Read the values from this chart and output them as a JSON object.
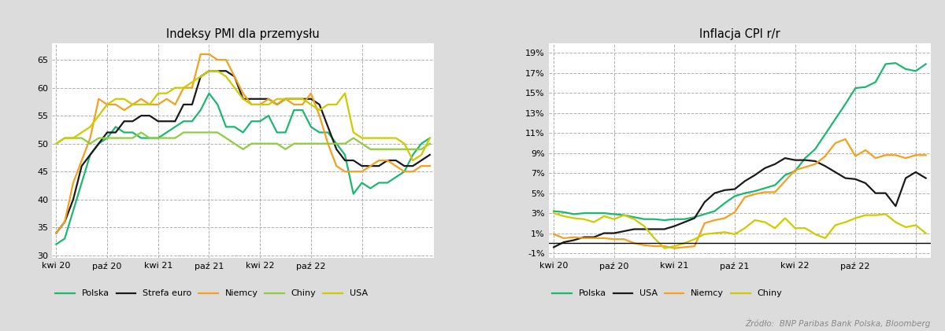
{
  "title1": "Indeksy PMI dla przemysłu",
  "title2": "Inflacja CPI r/r",
  "source": "Żródło:  BNP Paribas Bank Polska, Bloomberg",
  "bg_color": "#dcdcdc",
  "title_bg": "#d0d0d0",
  "plot_bg": "#ffffff",
  "pmi_polska": [
    32,
    33,
    38,
    43,
    48,
    50,
    51,
    53,
    52,
    52,
    51,
    51,
    51,
    52,
    53,
    54,
    54,
    56,
    59,
    57,
    53,
    53,
    52,
    54,
    54,
    55,
    52,
    52,
    56,
    56,
    53,
    52,
    52,
    50,
    48,
    41,
    43,
    42,
    43,
    43,
    44,
    45,
    48,
    50,
    51
  ],
  "pmi_strefa_euro": [
    34,
    36,
    40,
    46,
    48,
    50,
    52,
    52,
    54,
    54,
    55,
    55,
    54,
    54,
    54,
    57,
    57,
    62,
    63,
    63,
    63,
    62,
    58,
    58,
    58,
    58,
    57,
    58,
    58,
    58,
    58,
    57,
    53,
    49,
    47,
    47,
    46,
    46,
    46,
    47,
    47,
    46,
    46,
    47,
    48
  ],
  "pmi_niemcy": [
    34,
    36,
    43,
    47,
    51,
    58,
    57,
    57,
    56,
    57,
    58,
    57,
    57,
    58,
    57,
    60,
    60,
    66,
    66,
    65,
    65,
    62,
    59,
    57,
    57,
    58,
    57,
    58,
    57,
    57,
    59,
    55,
    50,
    46,
    45,
    45,
    45,
    46,
    47,
    47,
    46,
    45,
    45,
    46,
    46
  ],
  "pmi_chiny": [
    50,
    51,
    51,
    51,
    50,
    51,
    51,
    51,
    51,
    51,
    52,
    51,
    51,
    51,
    51,
    52,
    52,
    52,
    52,
    52,
    51,
    50,
    49,
    50,
    50,
    50,
    50,
    49,
    50,
    50,
    50,
    50,
    50,
    50,
    50,
    51,
    50,
    49,
    49,
    49,
    49,
    49,
    49,
    49,
    50
  ],
  "pmi_usa": [
    50,
    51,
    51,
    52,
    53,
    55,
    57,
    58,
    58,
    57,
    57,
    57,
    59,
    59,
    60,
    60,
    61,
    62,
    63,
    63,
    62,
    60,
    58,
    57,
    57,
    57,
    58,
    58,
    58,
    58,
    57,
    56,
    57,
    57,
    59,
    52,
    51,
    51,
    51,
    51,
    51,
    50,
    47,
    48,
    51
  ],
  "cpi_polska": [
    3.2,
    3.1,
    2.9,
    3.0,
    3.0,
    3.0,
    2.9,
    2.8,
    2.6,
    2.4,
    2.4,
    2.3,
    2.4,
    2.4,
    2.6,
    2.9,
    3.2,
    4.0,
    4.7,
    5.0,
    5.2,
    5.5,
    5.8,
    6.8,
    7.2,
    8.5,
    9.4,
    10.9,
    12.4,
    13.9,
    15.5,
    15.6,
    16.1,
    17.9,
    18.0,
    17.4,
    17.2,
    17.9
  ],
  "cpi_usa": [
    -0.4,
    0.1,
    0.3,
    0.6,
    0.6,
    1.0,
    1.0,
    1.2,
    1.4,
    1.4,
    1.4,
    1.4,
    1.7,
    2.1,
    2.5,
    4.1,
    5.0,
    5.3,
    5.4,
    6.2,
    6.8,
    7.5,
    7.9,
    8.5,
    8.3,
    8.3,
    8.2,
    7.7,
    7.1,
    6.5,
    6.4,
    6.0,
    5.0,
    5.0,
    3.7,
    6.5,
    7.1,
    6.5
  ],
  "cpi_niemcy": [
    0.9,
    0.5,
    0.6,
    0.5,
    0.5,
    0.5,
    0.4,
    0.4,
    0.0,
    -0.2,
    -0.3,
    -0.3,
    -0.5,
    -0.4,
    -0.3,
    2.0,
    2.3,
    2.5,
    3.1,
    4.6,
    4.9,
    5.1,
    5.1,
    6.2,
    7.3,
    7.6,
    7.9,
    8.7,
    10.0,
    10.4,
    8.7,
    9.3,
    8.5,
    8.8,
    8.8,
    8.5,
    8.8,
    8.8
  ],
  "cpi_chiny": [
    3.0,
    2.7,
    2.5,
    2.4,
    2.1,
    2.7,
    2.4,
    2.8,
    2.4,
    1.7,
    0.5,
    -0.5,
    -0.3,
    0.0,
    0.4,
    0.9,
    1.0,
    1.1,
    0.9,
    1.5,
    2.3,
    2.1,
    1.5,
    2.5,
    1.5,
    1.5,
    0.9,
    0.5,
    1.8,
    2.1,
    2.5,
    2.8,
    2.8,
    2.9,
    2.1,
    1.6,
    1.8,
    1.0
  ],
  "color_polska": "#1db870",
  "color_strefa_euro": "#1a1a1a",
  "color_niemcy": "#f5a020",
  "color_chiny": "#90cc40",
  "color_usa_pmi": "#cccc00",
  "color_usa_cpi": "#1a1a1a",
  "color_niemcy_cpi": "#f5a020",
  "color_chiny_cpi": "#cccc00",
  "pmi_yticks": [
    30,
    35,
    40,
    45,
    50,
    55,
    60,
    65
  ],
  "cpi_yticks": [
    -1,
    1,
    3,
    5,
    7,
    9,
    11,
    13,
    15,
    17,
    19
  ],
  "pmi_ylim": [
    29.5,
    68
  ],
  "cpi_ylim": [
    -1.5,
    20
  ],
  "tick_positions": [
    0,
    6,
    12,
    18,
    24,
    30,
    36
  ],
  "tick_labels": [
    "kwi 20",
    "paź 20",
    "kwi 21",
    "paź 21",
    "kwi 22",
    "paź 22",
    ""
  ]
}
